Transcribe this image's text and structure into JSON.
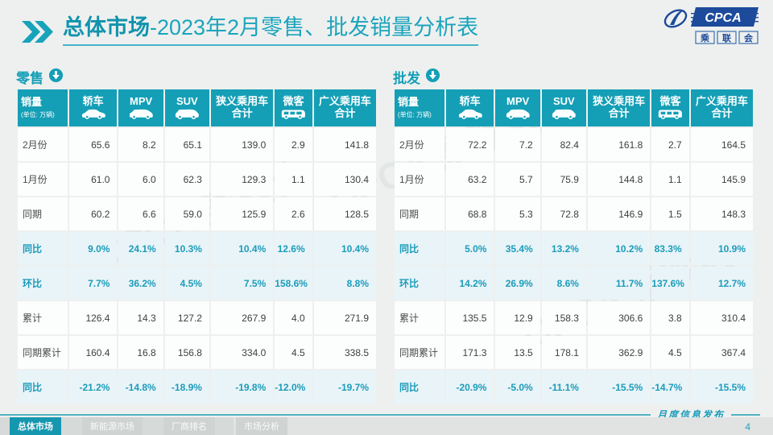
{
  "header": {
    "title_bold": "总体市场",
    "title_rest": "-2023年2月零售、批发销量分析表"
  },
  "logo": {
    "name": "CPCA",
    "assoc_chars": [
      "乘",
      "联",
      "会"
    ]
  },
  "watermark": "CPCA 乘联会",
  "columns": [
    {
      "label": "销量",
      "sub": "(单位: 万辆)"
    },
    {
      "label": "轿车",
      "icon": "sedan-icon"
    },
    {
      "label": "MPV",
      "icon": "mpv-icon"
    },
    {
      "label": "SUV",
      "icon": "suv-icon"
    },
    {
      "label": "狭义乘用车",
      "label2": "合计"
    },
    {
      "label": "微客",
      "icon": "van-icon"
    },
    {
      "label": "广义乘用车",
      "label2": "合计"
    }
  ],
  "tables": [
    {
      "id": "retail",
      "section_label": "零售",
      "section_icon": "down-arrow-circle-icon",
      "rows": [
        {
          "label": "2月份",
          "type": "value",
          "values": [
            "65.6",
            "8.2",
            "65.1",
            "139.0",
            "2.9",
            "141.8"
          ]
        },
        {
          "label": "1月份",
          "type": "value",
          "values": [
            "61.0",
            "6.0",
            "62.3",
            "129.3",
            "1.1",
            "130.4"
          ]
        },
        {
          "label": "同期",
          "type": "value",
          "values": [
            "60.2",
            "6.6",
            "59.0",
            "125.9",
            "2.6",
            "128.5"
          ]
        },
        {
          "label": "同比",
          "type": "pct",
          "values": [
            "9.0%",
            "24.1%",
            "10.3%",
            "10.4%",
            "12.6%",
            "10.4%"
          ]
        },
        {
          "label": "环比",
          "type": "pct",
          "values": [
            "7.7%",
            "36.2%",
            "4.5%",
            "7.5%",
            "158.6%",
            "8.8%"
          ]
        },
        {
          "label": "累计",
          "type": "value",
          "values": [
            "126.4",
            "14.3",
            "127.2",
            "267.9",
            "4.0",
            "271.9"
          ]
        },
        {
          "label": "同期累计",
          "type": "value",
          "values": [
            "160.4",
            "16.8",
            "156.8",
            "334.0",
            "4.5",
            "338.5"
          ]
        },
        {
          "label": "同比",
          "type": "pct",
          "values": [
            "-21.2%",
            "-14.8%",
            "-18.9%",
            "-19.8%",
            "-12.0%",
            "-19.7%"
          ]
        }
      ]
    },
    {
      "id": "wholesale",
      "section_label": "批发",
      "section_icon": "down-arrow-circle-icon",
      "rows": [
        {
          "label": "2月份",
          "type": "value",
          "values": [
            "72.2",
            "7.2",
            "82.4",
            "161.8",
            "2.7",
            "164.5"
          ]
        },
        {
          "label": "1月份",
          "type": "value",
          "values": [
            "63.2",
            "5.7",
            "75.9",
            "144.8",
            "1.1",
            "145.9"
          ]
        },
        {
          "label": "同期",
          "type": "value",
          "values": [
            "68.8",
            "5.3",
            "72.8",
            "146.9",
            "1.5",
            "148.3"
          ]
        },
        {
          "label": "同比",
          "type": "pct",
          "values": [
            "5.0%",
            "35.4%",
            "13.2%",
            "10.2%",
            "83.3%",
            "10.9%"
          ]
        },
        {
          "label": "环比",
          "type": "pct",
          "values": [
            "14.2%",
            "26.9%",
            "8.6%",
            "11.7%",
            "137.6%",
            "12.7%"
          ]
        },
        {
          "label": "累计",
          "type": "value",
          "values": [
            "135.5",
            "12.9",
            "158.3",
            "306.6",
            "3.8",
            "310.4"
          ]
        },
        {
          "label": "同期累计",
          "type": "value",
          "values": [
            "171.3",
            "13.5",
            "178.1",
            "362.9",
            "4.5",
            "367.4"
          ]
        },
        {
          "label": "同比",
          "type": "pct",
          "values": [
            "-20.9%",
            "-5.0%",
            "-11.1%",
            "-15.5%",
            "-14.7%",
            "-15.5%"
          ]
        }
      ]
    }
  ],
  "footer": {
    "tabs": [
      {
        "label": "总体市场",
        "active": true
      },
      {
        "label": "新能源市场",
        "active": false
      },
      {
        "label": "厂商排名",
        "active": false
      },
      {
        "label": "市场分析",
        "active": false
      }
    ],
    "publication": "月度信息发布",
    "page_number": "4"
  },
  "colors": {
    "accent_teal": "#149fb6",
    "title_teal": "#1ba4bc",
    "pct_row_bg": "#e9f4f8",
    "logo_blue": "#1d4a9b",
    "page_bg": "#eef0ef"
  }
}
